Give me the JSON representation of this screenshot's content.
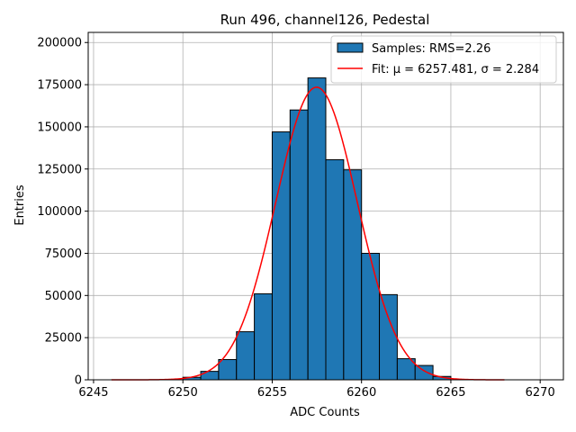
{
  "chart_data": {
    "type": "bar",
    "title": "Run 496, channel126, Pedestal",
    "xlabel": "ADC Counts",
    "ylabel": "Entries",
    "xlim": [
      6244.7,
      6271.3
    ],
    "ylim": [
      0,
      206000
    ],
    "xticks": [
      6245,
      6250,
      6255,
      6260,
      6265,
      6270
    ],
    "yticks": [
      0,
      25000,
      50000,
      75000,
      100000,
      125000,
      150000,
      175000,
      200000
    ],
    "grid": true,
    "legend_position": "top-right",
    "bar_color": "#1f77b4",
    "fit_color": "#ff0000",
    "histogram": {
      "name": "Samples: RMS=2.26",
      "bin_edges": [
        6250,
        6251,
        6252,
        6253,
        6254,
        6255,
        6256,
        6257,
        6258,
        6259,
        6260,
        6261,
        6262,
        6263,
        6264,
        6265
      ],
      "counts": [
        1500,
        5000,
        12000,
        28500,
        51000,
        147000,
        160000,
        179000,
        130500,
        124500,
        75000,
        50500,
        12500,
        8500,
        2000
      ]
    },
    "fit": {
      "name": "Fit: μ = 6257.481, σ = 2.284",
      "mu": 6257.481,
      "sigma": 2.284,
      "amplitude": 173500,
      "x_range": [
        6246,
        6268
      ]
    }
  }
}
